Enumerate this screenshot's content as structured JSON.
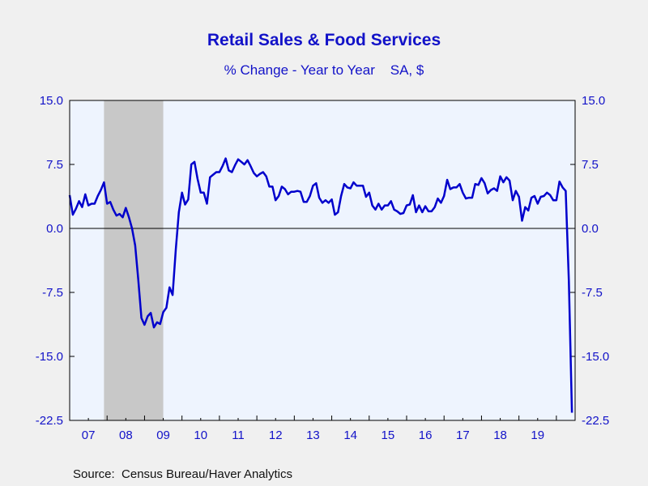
{
  "chart_data": {
    "type": "line",
    "title": "Retail Sales & Food Services",
    "subtitle": "% Change - Year to Year    SA, $",
    "source": "Source:  Census Bureau/Haver Analytics",
    "y_range": [
      -22.5,
      15.0
    ],
    "y_ticks": [
      "15.0",
      "7.5",
      "0.0",
      "-7.5",
      "-15.0",
      "-22.5"
    ],
    "x_range": [
      2007.0,
      2020.5
    ],
    "x_tick_labels": [
      "07",
      "08",
      "09",
      "10",
      "11",
      "12",
      "13",
      "14",
      "15",
      "16",
      "17",
      "18",
      "19"
    ],
    "recession": {
      "start": 2007.917,
      "end": 2009.5
    },
    "colors": {
      "line": "#0000cc",
      "plot_background": "#eef4fe",
      "recession_shade": "#c8c8c8",
      "text": "#1212c8"
    },
    "series": [
      {
        "x_start": 2007.0,
        "x_step_months": 1,
        "values": [
          3.9,
          1.6,
          2.3,
          3.2,
          2.5,
          4.0,
          2.7,
          2.9,
          2.9,
          3.8,
          4.5,
          5.4,
          2.9,
          3.1,
          2.2,
          1.5,
          1.7,
          1.3,
          2.4,
          1.3,
          0.0,
          -2.0,
          -6.0,
          -10.5,
          -11.3,
          -10.3,
          -9.9,
          -11.6,
          -11.0,
          -11.2,
          -9.8,
          -9.3,
          -6.9,
          -7.8,
          -2.5,
          1.9,
          4.2,
          2.8,
          3.4,
          7.5,
          7.8,
          5.8,
          4.2,
          4.2,
          2.9,
          6.0,
          6.3,
          6.6,
          6.6,
          7.3,
          8.2,
          6.8,
          6.6,
          7.4,
          8.1,
          7.8,
          7.5,
          8.0,
          7.3,
          6.5,
          6.1,
          6.4,
          6.6,
          6.1,
          4.9,
          4.9,
          3.3,
          3.8,
          4.9,
          4.6,
          4.0,
          4.3,
          4.3,
          4.4,
          4.3,
          3.1,
          3.1,
          3.8,
          5.0,
          5.3,
          3.6,
          3.0,
          3.3,
          3.0,
          3.4,
          1.6,
          1.9,
          3.8,
          5.2,
          4.8,
          4.7,
          5.4,
          5.0,
          5.0,
          5.0,
          3.7,
          4.2,
          2.7,
          2.2,
          2.9,
          2.2,
          2.7,
          2.7,
          3.2,
          2.2,
          2.0,
          1.7,
          1.8,
          2.7,
          2.8,
          3.9,
          1.9,
          2.7,
          1.9,
          2.6,
          2.0,
          2.0,
          2.5,
          3.5,
          3.0,
          3.8,
          5.7,
          4.6,
          4.8,
          4.8,
          5.2,
          4.2,
          3.5,
          3.6,
          3.6,
          5.2,
          5.1,
          5.9,
          5.3,
          4.1,
          4.5,
          4.7,
          4.4,
          6.1,
          5.4,
          6.0,
          5.6,
          3.3,
          4.4,
          3.7,
          0.9,
          2.5,
          2.1,
          3.6,
          3.8,
          2.9,
          3.7,
          3.8,
          4.2,
          3.9,
          3.3,
          3.3,
          5.5,
          4.8,
          4.4,
          -6.2,
          -21.6
        ]
      }
    ]
  }
}
